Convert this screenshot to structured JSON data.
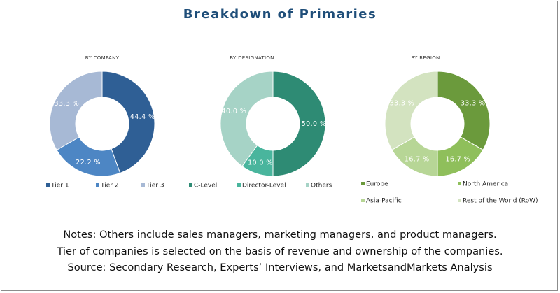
{
  "title": "Breakdown of Primaries",
  "chart_data": [
    {
      "type": "pie",
      "title": "BY COMPANY",
      "categories": [
        "Tier 1",
        "Tier 2",
        "Tier 3"
      ],
      "values": [
        44.4,
        22.2,
        33.3
      ],
      "labels": [
        "44.4 %",
        "22.2 %",
        "33.3 %"
      ],
      "colors": [
        "#2f5f95",
        "#4d86c4",
        "#a7b9d5"
      ],
      "legend_placement": "bottom"
    },
    {
      "type": "pie",
      "title": "BY DESIGNATION",
      "categories": [
        "C-Level",
        "Director-Level",
        "Others"
      ],
      "values": [
        50.0,
        10.0,
        40.0
      ],
      "labels": [
        "50.0 %",
        "10.0 %",
        "40.0 %"
      ],
      "colors": [
        "#2e8b74",
        "#49b59d",
        "#a6d3c6"
      ],
      "legend_placement": "bottom"
    },
    {
      "type": "pie",
      "title": "BY REGION",
      "categories": [
        "Europe",
        "North America",
        "Asia-Pacific",
        "Rest of the World (RoW)"
      ],
      "values": [
        33.3,
        16.7,
        16.7,
        33.3
      ],
      "labels": [
        "33.3 %",
        "16.7 %",
        "16.7 %",
        "33.3 %"
      ],
      "colors": [
        "#6b9a3c",
        "#8fbf5b",
        "#b7d696",
        "#d3e3c0"
      ],
      "legend_placement": "bottom"
    }
  ],
  "notes": [
    "Notes: Others include  sales managers, marketing managers, and product managers.",
    "Tier of companies is selected on the basis of revenue and ownership of the companies.",
    "Source: Secondary Research, Experts’ Interviews, and MarketsandMarkets Analysis"
  ]
}
